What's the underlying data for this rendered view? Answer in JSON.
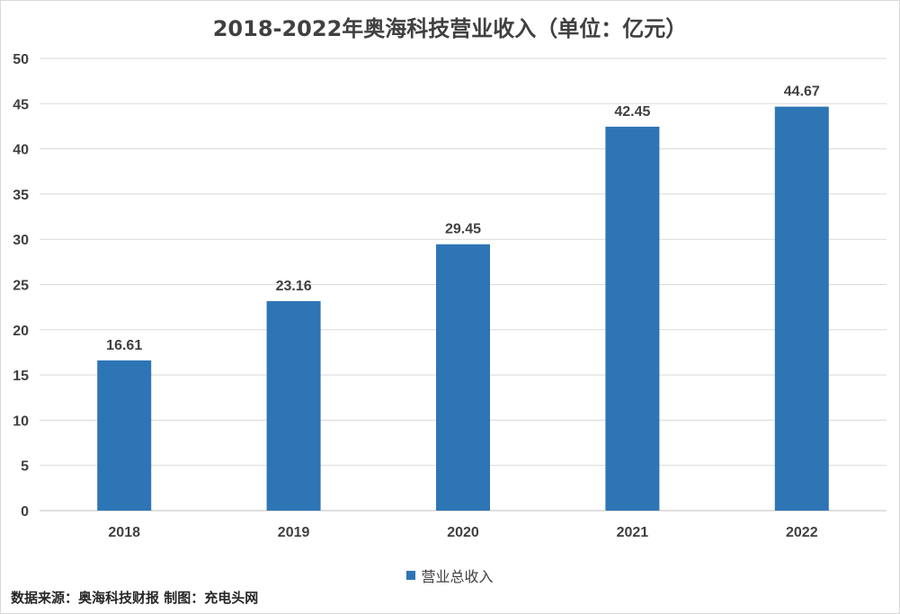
{
  "chart_data": {
    "type": "bar",
    "title": "2018-2022年奥海科技营业收入（单位：亿元）",
    "categories": [
      "2018",
      "2019",
      "2020",
      "2021",
      "2022"
    ],
    "series": [
      {
        "name": "营业总收入",
        "values": [
          16.61,
          23.16,
          29.45,
          42.45,
          44.67
        ]
      }
    ],
    "data_labels": [
      "16.61",
      "23.16",
      "29.45",
      "42.45",
      "44.67"
    ],
    "ylim": [
      0,
      50
    ],
    "yticks": [
      0,
      5,
      10,
      15,
      20,
      25,
      30,
      35,
      40,
      45,
      50
    ],
    "grid": true,
    "legend": "bottom",
    "bar_color": "#2e75b6",
    "xlabel": "",
    "ylabel": ""
  },
  "footer": {
    "source": "数据来源：奥海科技财报  制图：充电头网"
  }
}
